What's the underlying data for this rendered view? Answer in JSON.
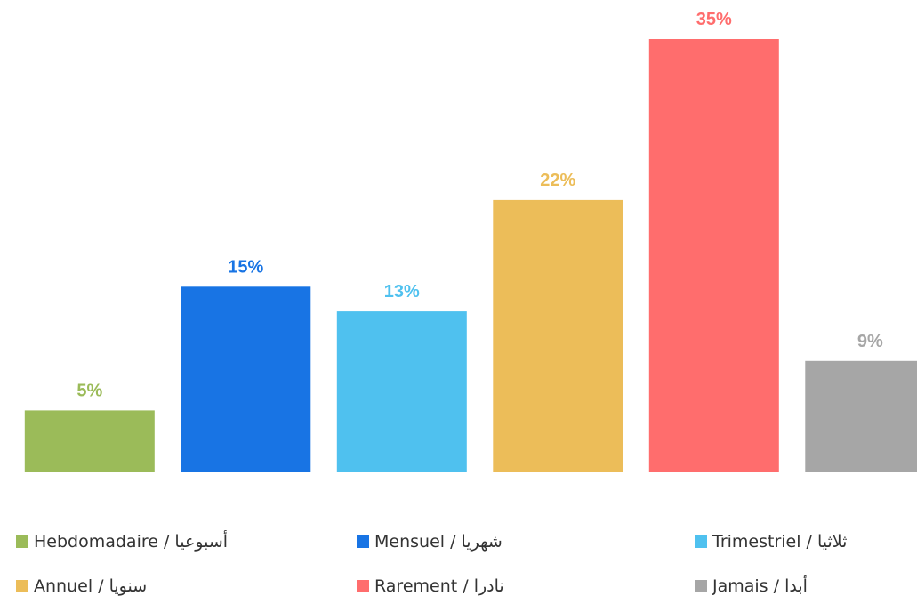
{
  "chart_data": {
    "type": "bar",
    "categories": [
      "Hebdomadaire / أسبوعيا",
      "Mensuel / شهريا",
      "Trimestriel / ثلاثيا",
      "Annuel / سنويا",
      "Rarement / نادرا",
      "Jamais / أبدا"
    ],
    "values": [
      5,
      15,
      13,
      22,
      35,
      9
    ],
    "data_labels": [
      "5%",
      "15%",
      "13%",
      "22%",
      "35%",
      "9%"
    ],
    "colors": [
      "#9BBB59",
      "#1874E4",
      "#4FC1EF",
      "#ECBD59",
      "#FF6D6D",
      "#A6A6A6"
    ],
    "unit": "%",
    "ylim": [
      0,
      35
    ],
    "grid": false,
    "legend_position": "bottom",
    "title": "",
    "xlabel": "",
    "ylabel": ""
  }
}
